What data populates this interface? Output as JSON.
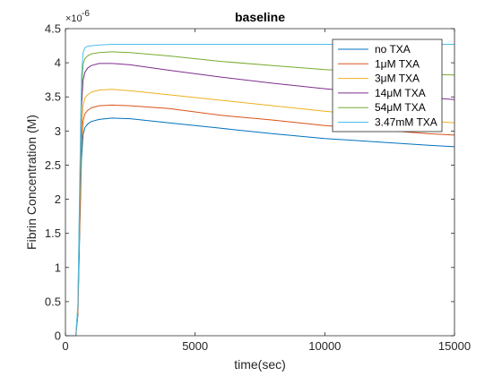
{
  "chart_data": {
    "type": "line",
    "title": "baseline",
    "xlabel": "time(sec)",
    "ylabel": "Fibrin Concentration (M)",
    "y_exponent_label": "×10",
    "y_exponent_power": "-6",
    "xlim": [
      0,
      15000
    ],
    "ylim": [
      0,
      4.5
    ],
    "x_ticks": [
      0,
      5000,
      10000,
      15000
    ],
    "x_tick_labels": [
      "0",
      "5000",
      "10000",
      "15000"
    ],
    "y_ticks": [
      0,
      0.5,
      1,
      1.5,
      2,
      2.5,
      3,
      3.5,
      4,
      4.5
    ],
    "y_tick_labels": [
      "0",
      "0.5",
      "1",
      "1.5",
      "2",
      "2.5",
      "3",
      "3.5",
      "4",
      "4.5"
    ],
    "grid": false,
    "legend_position": "top-right",
    "x": [
      0,
      400,
      480,
      550,
      620,
      680,
      750,
      850,
      1000,
      1300,
      1800,
      2500,
      4000,
      6000,
      8000,
      10000,
      12000,
      14000,
      15000
    ],
    "series": [
      {
        "name": "no TXA",
        "color": "#0072BD",
        "values": [
          0,
          0,
          0.3,
          1.5,
          2.6,
          2.95,
          3.05,
          3.1,
          3.14,
          3.17,
          3.19,
          3.18,
          3.12,
          3.04,
          2.96,
          2.89,
          2.84,
          2.79,
          2.77
        ]
      },
      {
        "name": "1μM TXA",
        "color": "#D95319",
        "values": [
          0,
          0,
          0.33,
          1.6,
          2.8,
          3.15,
          3.25,
          3.3,
          3.34,
          3.37,
          3.38,
          3.37,
          3.33,
          3.23,
          3.16,
          3.08,
          3.02,
          2.96,
          2.94
        ]
      },
      {
        "name": "3μM TXA",
        "color": "#EDB120",
        "values": [
          0,
          0,
          0.36,
          1.75,
          3.0,
          3.38,
          3.48,
          3.53,
          3.57,
          3.6,
          3.61,
          3.59,
          3.53,
          3.45,
          3.37,
          3.29,
          3.22,
          3.15,
          3.12
        ]
      },
      {
        "name": "14μM TXA",
        "color": "#7E2F8E",
        "values": [
          0,
          0,
          0.4,
          1.95,
          3.35,
          3.75,
          3.86,
          3.92,
          3.96,
          3.99,
          3.99,
          3.97,
          3.89,
          3.79,
          3.7,
          3.62,
          3.55,
          3.49,
          3.46
        ]
      },
      {
        "name": "54μM TXA",
        "color": "#77AC30",
        "values": [
          0,
          0,
          0.43,
          2.1,
          3.6,
          3.98,
          4.06,
          4.1,
          4.13,
          4.15,
          4.16,
          4.15,
          4.1,
          4.02,
          3.96,
          3.9,
          3.86,
          3.83,
          3.82
        ]
      },
      {
        "name": "3.47mM TXA",
        "color": "#4DBEEE",
        "values": [
          0,
          0,
          0.46,
          2.25,
          3.8,
          4.15,
          4.22,
          4.24,
          4.25,
          4.26,
          4.27,
          4.27,
          4.27,
          4.27,
          4.27,
          4.27,
          4.27,
          4.27,
          4.27
        ]
      }
    ]
  }
}
